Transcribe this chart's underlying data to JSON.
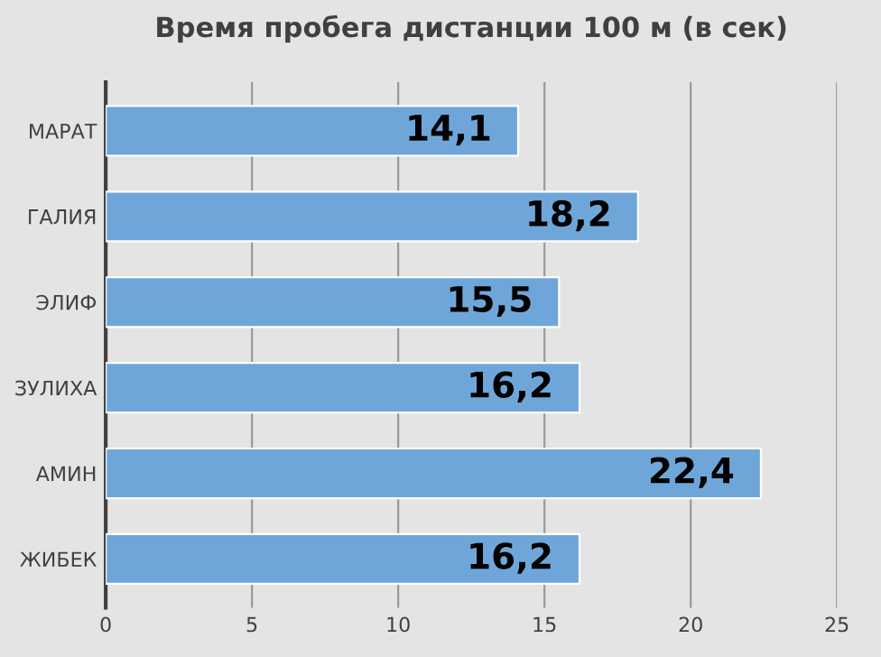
{
  "chart_data": {
    "type": "bar",
    "orientation": "horizontal",
    "title": "Время пробега дистанции 100 м (в сек)",
    "categories": [
      "МАРАТ",
      "ГАЛИЯ",
      "ЭЛИФ",
      "ЗУЛИХА",
      "АМИН",
      "ЖИБЕК"
    ],
    "values": [
      14.1,
      18.2,
      15.5,
      16.2,
      22.4,
      16.2
    ],
    "value_labels": [
      "14,1",
      "18,2",
      "15,5",
      "16,2",
      "22,4",
      "16,2"
    ],
    "color": "#6fa6da",
    "xlim": [
      0,
      25
    ],
    "xticks": [
      0,
      5,
      10,
      15,
      20,
      25
    ],
    "grid": "x",
    "legend": false
  }
}
